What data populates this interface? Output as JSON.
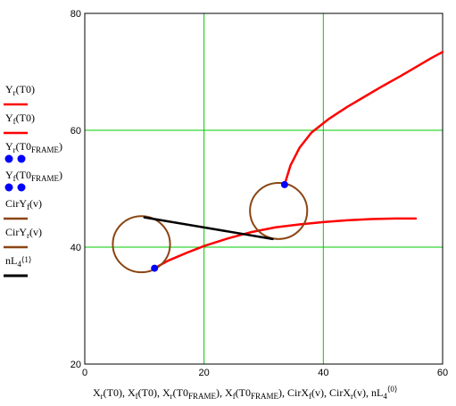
{
  "chart_data": {
    "type": "line",
    "grid": true,
    "xlim": [
      0,
      60
    ],
    "ylim": [
      20,
      80
    ],
    "x_ticks": [
      "0",
      "20",
      "40",
      "60"
    ],
    "y_ticks": [
      "20",
      "40",
      "60",
      "80"
    ],
    "colors": {
      "grid": "#00cc00",
      "trajectory": "#ff0000",
      "frame_points": "#0000ff",
      "circles": "#8b4513",
      "segment": "#000000",
      "axis": "#000000"
    },
    "legend": [
      {
        "base": "Y",
        "sub": "r",
        "arg_open": "(T0",
        "arg_sub": "",
        "arg_close": ")",
        "sup": "",
        "style": "line",
        "color": "#ff0000"
      },
      {
        "base": "Y",
        "sub": "f",
        "arg_open": "(T0",
        "arg_sub": "",
        "arg_close": ")",
        "sup": "",
        "style": "line",
        "color": "#ff0000"
      },
      {
        "base": "Y",
        "sub": "r",
        "arg_open": "(T0",
        "arg_sub": "FRAME",
        "arg_close": ")",
        "sup": "",
        "style": "dots",
        "color": "#0000ff"
      },
      {
        "base": "Y",
        "sub": "f",
        "arg_open": "(T0",
        "arg_sub": "FRAME",
        "arg_close": ")",
        "sup": "",
        "style": "dots",
        "color": "#0000ff"
      },
      {
        "base": "CirY",
        "sub": "f",
        "arg_open": "(v",
        "arg_sub": "",
        "arg_close": ")",
        "sup": "",
        "style": "line",
        "color": "#8b4513"
      },
      {
        "base": "CirY",
        "sub": "r",
        "arg_open": "(v",
        "arg_sub": "",
        "arg_close": ")",
        "sup": "",
        "style": "line",
        "color": "#8b4513"
      },
      {
        "base": "nL",
        "sub": "4",
        "arg_open": "",
        "arg_sub": "",
        "arg_close": "",
        "sup": "⟨1⟩",
        "style": "thick",
        "color": "#000000"
      }
    ],
    "xlabel_parts": [
      {
        "base": "X",
        "sub": "r",
        "arg": "(T0)",
        "argsub": "",
        "sep": ", "
      },
      {
        "base": "X",
        "sub": "f",
        "arg": "(T0)",
        "argsub": "",
        "sep": ", "
      },
      {
        "base": "X",
        "sub": "r",
        "arg": "(T0",
        "argsub": "FRAME",
        "close": ")",
        "sep": ", "
      },
      {
        "base": "X",
        "sub": "f",
        "arg": "(T0",
        "argsub": "FRAME",
        "close": ")",
        "sep": ", "
      },
      {
        "base": "CirX",
        "sub": "f",
        "arg": "(v)",
        "argsub": "",
        "sep": ", "
      },
      {
        "base": "CirX",
        "sub": "r",
        "arg": "(v)",
        "argsub": "",
        "sep": ", "
      },
      {
        "base": "nL",
        "sub": "4",
        "arg": "",
        "argsub": "",
        "sup": "⟨0⟩",
        "sep": ""
      }
    ],
    "series": [
      {
        "name": "Yr(T0)",
        "style": "line",
        "color": "#ff0000",
        "x": [
          11.7,
          14,
          17,
          20,
          24,
          28,
          32,
          36,
          40,
          44,
          48,
          52,
          55.5
        ],
        "y": [
          36.4,
          37.7,
          39.0,
          40.2,
          41.5,
          42.6,
          43.4,
          43.9,
          44.3,
          44.6,
          44.8,
          44.9,
          44.9
        ]
      },
      {
        "name": "Yf(T0)",
        "style": "line",
        "color": "#ff0000",
        "x": [
          33.5,
          34.5,
          36,
          38,
          41,
          44,
          47,
          50,
          53,
          56,
          58,
          60
        ],
        "y": [
          50.7,
          54.0,
          57.0,
          59.6,
          62.0,
          64.0,
          65.8,
          67.6,
          69.3,
          71.1,
          72.3,
          73.4
        ]
      },
      {
        "name": "Yr(T0FRAME)",
        "style": "dots",
        "color": "#0000ff",
        "x": [
          11.7
        ],
        "y": [
          36.4
        ]
      },
      {
        "name": "Yf(T0FRAME)",
        "style": "dots",
        "color": "#0000ff",
        "x": [
          33.5
        ],
        "y": [
          50.7
        ]
      },
      {
        "name": "CirYf(v)",
        "style": "circle",
        "color": "#8b4513",
        "center": [
          32.5,
          46.2
        ],
        "radius_x": 4.8,
        "radius_y": 4.8
      },
      {
        "name": "CirYr(v)",
        "style": "circle",
        "color": "#8b4513",
        "center": [
          9.5,
          40.5
        ],
        "radius_x": 4.8,
        "radius_y": 4.8
      },
      {
        "name": "nL4<1>",
        "style": "thick",
        "color": "#000000",
        "x": [
          10.0,
          31.5
        ],
        "y": [
          45.1,
          41.4
        ]
      }
    ]
  }
}
